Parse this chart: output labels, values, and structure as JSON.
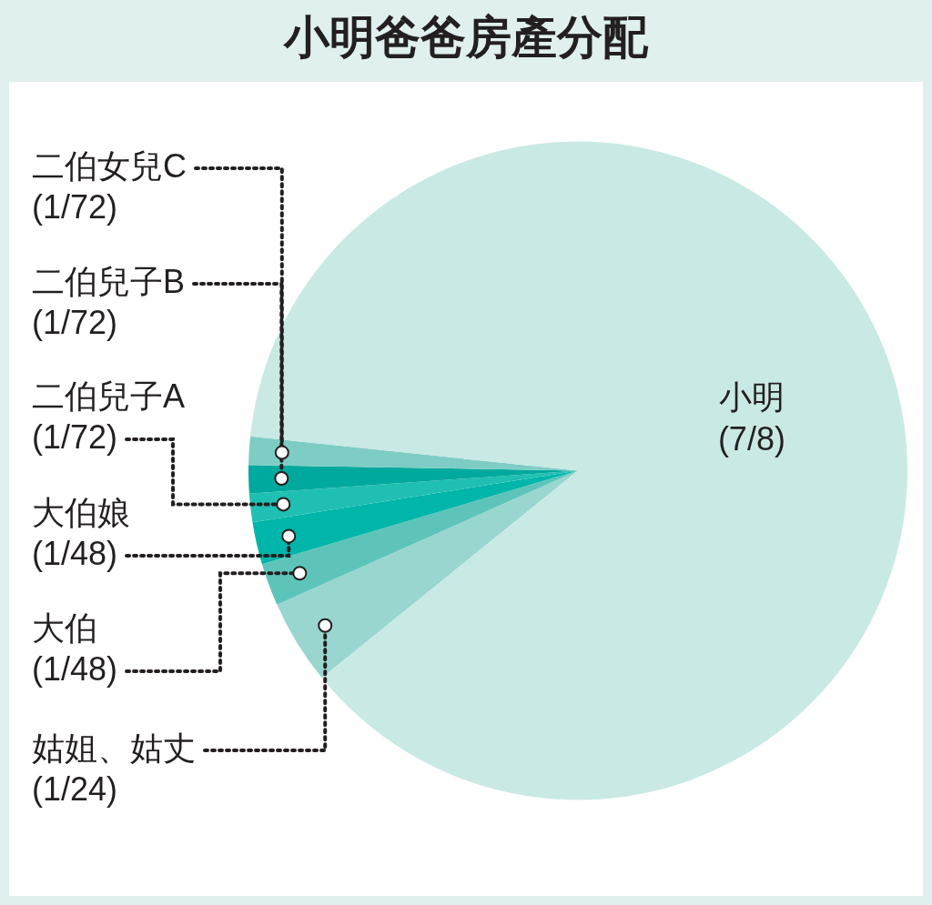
{
  "chart_data": {
    "type": "pie",
    "title": "小明爸爸房產分配",
    "categories": [
      "姑姐、姑丈",
      "大伯",
      "大伯娘",
      "二伯兒子A",
      "二伯兒子B",
      "二伯女兒C",
      "小明"
    ],
    "values": [
      4.1667,
      2.0833,
      2.0833,
      1.3889,
      1.3889,
      1.3889,
      87.5
    ],
    "value_labels": [
      "(1/24)",
      "(1/48)",
      "(1/48)",
      "(1/72)",
      "(1/72)",
      "(1/72)",
      "(7/8)"
    ],
    "colors": [
      "#99d6d0",
      "#5ec4ba",
      "#00b5a9",
      "#20bfb3",
      "#00a99d",
      "#7ecdc5",
      "#c9e9e5"
    ],
    "legend": false
  }
}
